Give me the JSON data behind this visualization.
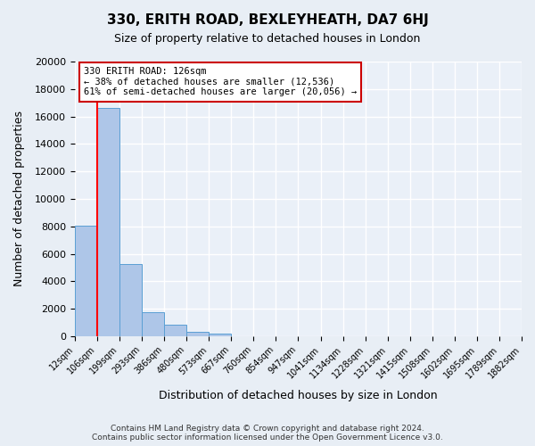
{
  "title": "330, ERITH ROAD, BEXLEYHEATH, DA7 6HJ",
  "subtitle": "Size of property relative to detached houses in London",
  "xlabel": "Distribution of detached houses by size in London",
  "ylabel": "Number of detached properties",
  "bin_labels": [
    "12sqm",
    "106sqm",
    "199sqm",
    "293sqm",
    "386sqm",
    "480sqm",
    "573sqm",
    "667sqm",
    "760sqm",
    "854sqm",
    "947sqm",
    "1041sqm",
    "1134sqm",
    "1228sqm",
    "1321sqm",
    "1415sqm",
    "1508sqm",
    "1602sqm",
    "1695sqm",
    "1789sqm",
    "1882sqm"
  ],
  "bar_heights": [
    8050,
    16600,
    5250,
    1780,
    820,
    310,
    210,
    0,
    0,
    0,
    0,
    0,
    0,
    0,
    0,
    0,
    0,
    0,
    0,
    0
  ],
  "bar_color": "#aec6e8",
  "bar_edge_color": "#5a9fd4",
  "ylim": [
    0,
    20000
  ],
  "yticks": [
    0,
    2000,
    4000,
    6000,
    8000,
    10000,
    12000,
    14000,
    16000,
    18000,
    20000
  ],
  "red_line_x": 1,
  "property_sqm": 126,
  "property_label": "330 ERITH ROAD: 126sqm",
  "annotation_line1": "← 38% of detached houses are smaller (12,536)",
  "annotation_line2": "61% of semi-detached houses are larger (20,056) →",
  "annotation_box_color": "#ffffff",
  "annotation_box_edge": "#cc0000",
  "footer1": "Contains HM Land Registry data © Crown copyright and database right 2024.",
  "footer2": "Contains public sector information licensed under the Open Government Licence v3.0.",
  "bg_color": "#e8eef5",
  "plot_bg_color": "#eaf0f8",
  "grid_color": "#ffffff"
}
